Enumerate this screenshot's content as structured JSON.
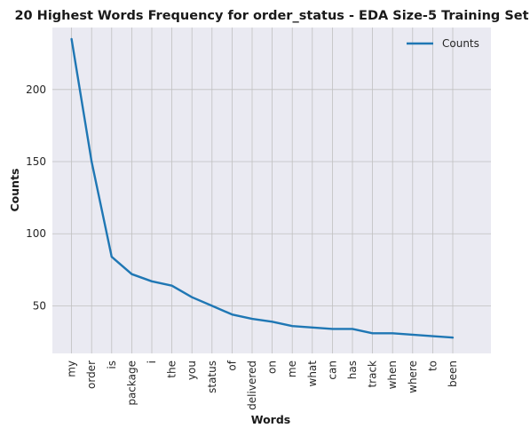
{
  "chart_data": {
    "type": "line",
    "title": "20 Highest Words Frequency for order_status - EDA Size-5 Training Set",
    "xlabel": "Words",
    "ylabel": "Counts",
    "categories": [
      "my",
      "order",
      "is",
      "package",
      "i",
      "the",
      "you",
      "status",
      "of",
      "delivered",
      "on",
      "me",
      "what",
      "can",
      "has",
      "track",
      "when",
      "where",
      "to",
      "been"
    ],
    "series": [
      {
        "name": "Counts",
        "color": "#1f77b4",
        "values": [
          235,
          150,
          84,
          72,
          67,
          64,
          56,
          50,
          44,
          41,
          39,
          36,
          35,
          34,
          34,
          31,
          31,
          30,
          29,
          28
        ]
      }
    ],
    "yticks": [
      50,
      100,
      150,
      200
    ],
    "ylim": [
      17,
      243
    ],
    "grid": true,
    "legend": "top-right",
    "background": "#eaeaf2",
    "grid_color": "#c0c0c0"
  }
}
